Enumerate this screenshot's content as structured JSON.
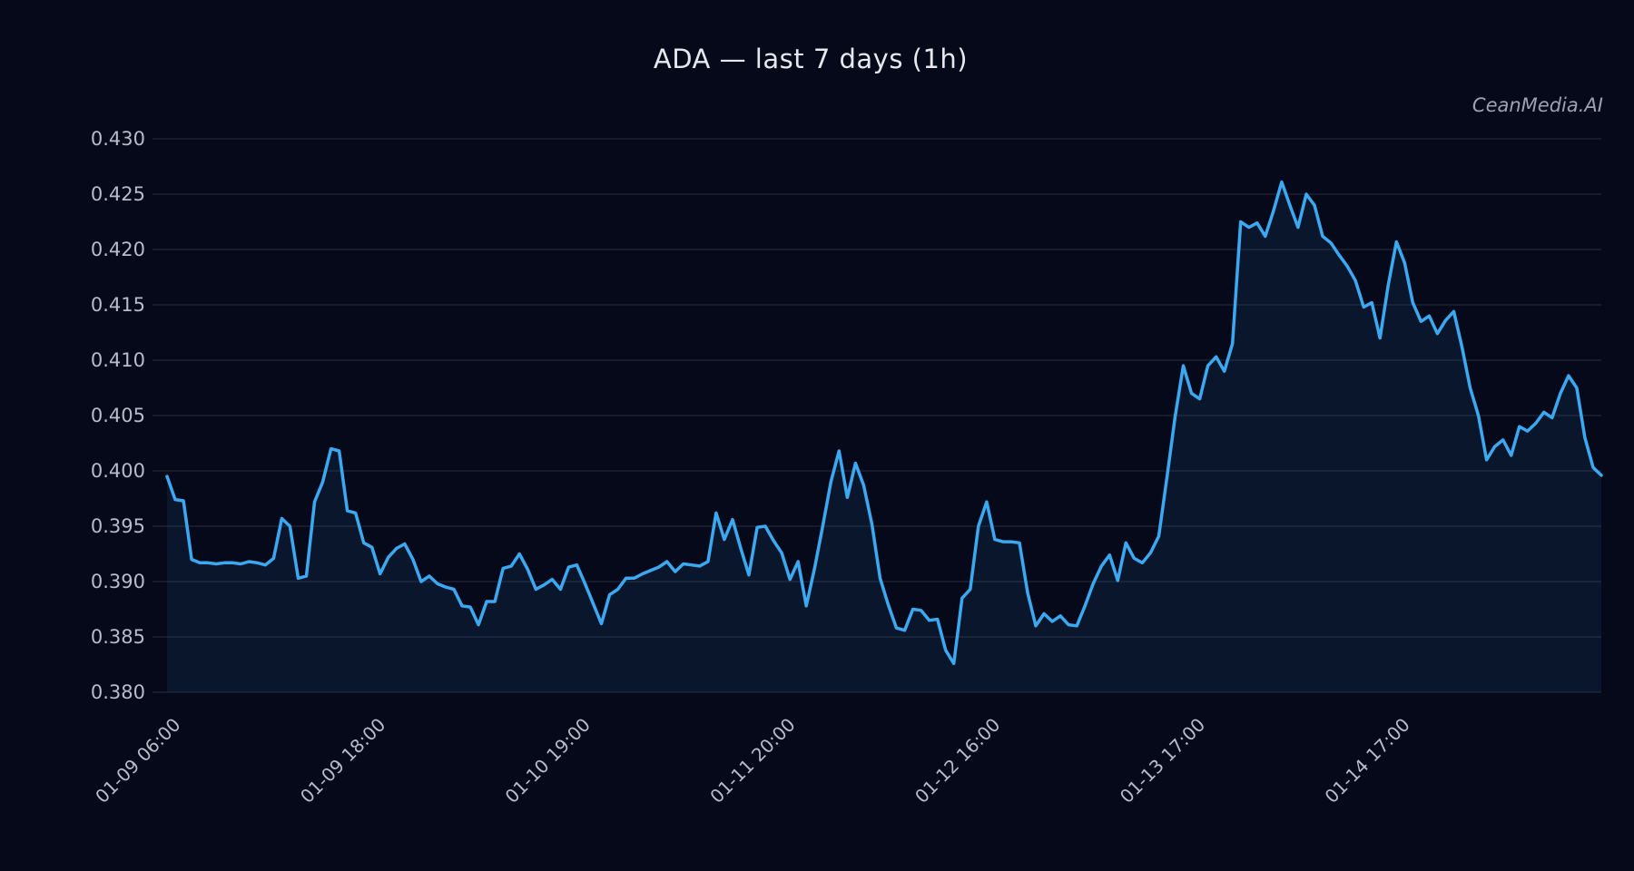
{
  "header": {
    "title": "ADA — last 7 days (1h)",
    "watermark": "CeanMedia.AI"
  },
  "chart_data": {
    "type": "line",
    "title": "ADA — last 7 days (1h)",
    "xlabel": "",
    "ylabel": "",
    "legend": "none",
    "grid": "horizontal",
    "ylim": [
      0.38,
      0.4315
    ],
    "y_tick_labels": [
      "0.380",
      "0.385",
      "0.390",
      "0.395",
      "0.400",
      "0.405",
      "0.410",
      "0.415",
      "0.420",
      "0.425",
      "0.430"
    ],
    "x_tick_labels": [
      "01-09 06:00",
      "01-09 18:00",
      "01-10 19:00",
      "01-11 20:00",
      "01-12 16:00",
      "01-13 17:00",
      "01-14 17:00"
    ],
    "x_tick_indices": [
      0,
      25,
      50,
      75,
      100,
      125,
      150
    ],
    "colors": {
      "background": "#05091a",
      "line": "#3ba9f2",
      "area_fill": "rgba(62,168,242,0.085)",
      "gridline": "#414959",
      "tick_label": "#b7bcc8",
      "title_text": "#e6e8ee",
      "watermark_text": "#9ba3b2"
    },
    "series": [
      {
        "name": "ADA",
        "values": [
          0.3995,
          0.3974,
          0.3973,
          0.392,
          0.3917,
          0.3917,
          0.3916,
          0.3917,
          0.3917,
          0.3916,
          0.3918,
          0.3917,
          0.3915,
          0.3921,
          0.3957,
          0.395,
          0.3903,
          0.3905,
          0.3972,
          0.399,
          0.402,
          0.4018,
          0.3964,
          0.3962,
          0.3935,
          0.3931,
          0.3907,
          0.3922,
          0.393,
          0.3934,
          0.392,
          0.39,
          0.3905,
          0.3898,
          0.3895,
          0.3893,
          0.3878,
          0.3877,
          0.3861,
          0.3882,
          0.3882,
          0.3912,
          0.3914,
          0.3925,
          0.3911,
          0.3893,
          0.3897,
          0.3902,
          0.3893,
          0.3913,
          0.3915,
          0.3898,
          0.388,
          0.3862,
          0.3888,
          0.3893,
          0.3903,
          0.3903,
          0.3907,
          0.391,
          0.3913,
          0.3918,
          0.3909,
          0.3916,
          0.3915,
          0.3914,
          0.3918,
          0.3962,
          0.3938,
          0.3956,
          0.393,
          0.3906,
          0.3949,
          0.395,
          0.3937,
          0.3926,
          0.3902,
          0.3918,
          0.3878,
          0.3912,
          0.395,
          0.399,
          0.4018,
          0.3976,
          0.4007,
          0.3987,
          0.3952,
          0.3903,
          0.3879,
          0.3858,
          0.3856,
          0.3875,
          0.3874,
          0.3865,
          0.3866,
          0.3838,
          0.3826,
          0.3885,
          0.3893,
          0.395,
          0.3972,
          0.3938,
          0.3936,
          0.3936,
          0.3935,
          0.389,
          0.386,
          0.3871,
          0.3864,
          0.3869,
          0.3861,
          0.386,
          0.3878,
          0.3898,
          0.3914,
          0.3924,
          0.3901,
          0.3935,
          0.3921,
          0.3917,
          0.3926,
          0.3941,
          0.3994,
          0.4049,
          0.4095,
          0.407,
          0.4065,
          0.4095,
          0.4103,
          0.409,
          0.4115,
          0.4225,
          0.422,
          0.4224,
          0.4212,
          0.4235,
          0.4261,
          0.424,
          0.422,
          0.425,
          0.424,
          0.4212,
          0.4206,
          0.4195,
          0.4185,
          0.4172,
          0.4148,
          0.4152,
          0.412,
          0.4168,
          0.4207,
          0.4188,
          0.4152,
          0.4135,
          0.414,
          0.4124,
          0.4136,
          0.4144,
          0.4112,
          0.4075,
          0.405,
          0.401,
          0.4022,
          0.4028,
          0.4014,
          0.404,
          0.4036,
          0.4043,
          0.4053,
          0.4048,
          0.407,
          0.4086,
          0.4075,
          0.403,
          0.4003,
          0.3996
        ]
      }
    ]
  }
}
